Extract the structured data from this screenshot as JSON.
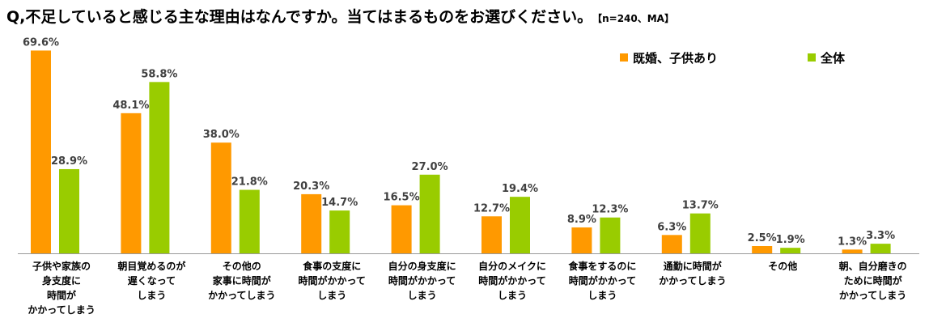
{
  "header": {
    "question": "Q,不足していると感じる主な理由はなんですか。当てはまるものをお選びください。",
    "sample_note": "【n=240、MA】"
  },
  "colors": {
    "married_with_children": "#FF9900",
    "all": "#99CC00",
    "axis": "#999999"
  },
  "chart_data": {
    "type": "bar",
    "title": "Q,不足していると感じる主な理由はなんですか。当てはまるものをお選びください。",
    "ylim": [
      0,
      75
    ],
    "grid": false,
    "legend_position": "top-right",
    "categories": [
      "子供や家族の身支度に時間がかかってしまう",
      "朝目覚めるのが遅くなってしまう",
      "その他の家事に時間がかかってしまう",
      "食事の支度に時間がかかってしまう",
      "自分の身支度に時間がかかってしまう",
      "自分のメイクに時間がかかってしまう",
      "食事をするのに時間がかかってしまう",
      "通勤に時間がかかってしまう",
      "その他",
      "朝、自分磨きのために時間がかかってしまう"
    ],
    "category_lines": [
      [
        "子供や家族の",
        "身支度に",
        "時間が",
        "かかってしまう"
      ],
      [
        "朝目覚めるのが",
        "遅くなって",
        "しまう"
      ],
      [
        "その他の",
        "家事に時間が",
        "かかってしまう"
      ],
      [
        "食事の支度に",
        "時間がかかって",
        "しまう"
      ],
      [
        "自分の身支度に",
        "時間がかかって",
        "しまう"
      ],
      [
        "自分のメイクに",
        "時間がかかって",
        "しまう"
      ],
      [
        "食事をするのに",
        "時間がかかって",
        "しまう"
      ],
      [
        "通勤に時間が",
        "かかってしまう"
      ],
      [
        "その他"
      ],
      [
        "朝、自分磨きの",
        "ために時間が",
        "かかってしまう"
      ]
    ],
    "series": [
      {
        "name": "既婚、子供あり",
        "color": "#FF9900",
        "values": [
          69.6,
          48.1,
          38.0,
          20.3,
          16.5,
          12.7,
          8.9,
          6.3,
          2.5,
          1.3
        ],
        "labels": [
          "69.6%",
          "48.1%",
          "38.0%",
          "20.3%",
          "16.5%",
          "12.7%",
          "8.9%",
          "6.3%",
          "2.5%",
          "1.3%"
        ]
      },
      {
        "name": "全体",
        "color": "#99CC00",
        "values": [
          28.9,
          58.8,
          21.8,
          14.7,
          27.0,
          19.4,
          12.3,
          13.7,
          1.9,
          3.3
        ],
        "labels": [
          "28.9%",
          "58.8%",
          "21.8%",
          "14.7%",
          "27.0%",
          "19.4%",
          "12.3%",
          "13.7%",
          "1.9%",
          "3.3%"
        ]
      }
    ]
  }
}
